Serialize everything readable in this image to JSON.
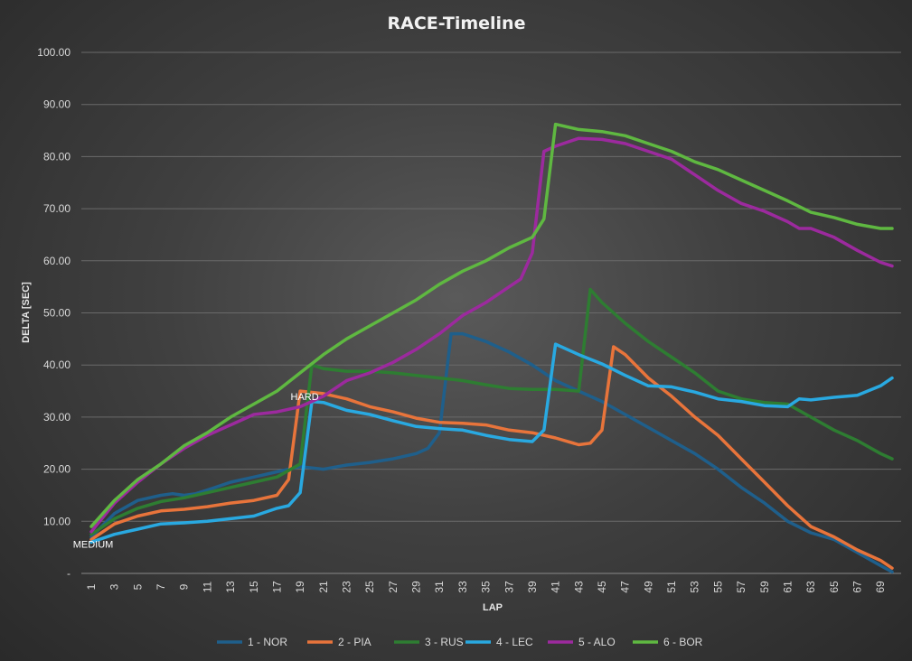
{
  "chart_data": {
    "type": "line",
    "title": "RACE-Timeline",
    "xlabel": "LAP",
    "ylabel": "DELTA [SEC]",
    "xlim": [
      1,
      70
    ],
    "ylim": [
      0,
      100
    ],
    "y_ticks": [
      "-",
      "10.00",
      "20.00",
      "30.00",
      "40.00",
      "50.00",
      "60.00",
      "70.00",
      "80.00",
      "90.00",
      "100.00"
    ],
    "x_ticks": [
      1,
      3,
      5,
      7,
      9,
      11,
      13,
      15,
      17,
      19,
      21,
      23,
      25,
      27,
      29,
      31,
      33,
      35,
      37,
      39,
      41,
      43,
      45,
      47,
      49,
      51,
      53,
      55,
      57,
      59,
      61,
      63,
      65,
      67,
      69
    ],
    "grid": "horizontal",
    "legend_position": "bottom",
    "annotations": [
      {
        "text": "MEDIUM",
        "x": 1,
        "y": 6
      },
      {
        "text": "HARD",
        "x": 19,
        "y": 34
      }
    ],
    "series": [
      {
        "name": "1 - NOR",
        "color": "#1f5f8b",
        "points": [
          [
            1,
            7
          ],
          [
            3,
            11.5
          ],
          [
            5,
            14
          ],
          [
            7,
            15
          ],
          [
            8,
            15.3
          ],
          [
            9,
            15
          ],
          [
            10,
            15.3
          ],
          [
            11,
            16
          ],
          [
            13,
            17.5
          ],
          [
            15,
            18.5
          ],
          [
            17,
            19.5
          ],
          [
            19,
            20.5
          ],
          [
            21,
            20
          ],
          [
            23,
            20.8
          ],
          [
            25,
            21.3
          ],
          [
            27,
            22
          ],
          [
            29,
            23
          ],
          [
            30,
            24
          ],
          [
            31,
            27
          ],
          [
            32,
            46
          ],
          [
            33,
            46
          ],
          [
            35,
            44.5
          ],
          [
            37,
            42.5
          ],
          [
            39,
            40
          ],
          [
            41,
            37
          ],
          [
            43,
            35
          ],
          [
            45,
            33
          ],
          [
            47,
            30.5
          ],
          [
            49,
            28
          ],
          [
            51,
            25.5
          ],
          [
            53,
            23
          ],
          [
            55,
            20
          ],
          [
            57,
            16.5
          ],
          [
            59,
            13.5
          ],
          [
            61,
            10
          ],
          [
            63,
            7.8
          ],
          [
            65,
            6.5
          ],
          [
            67,
            4
          ],
          [
            69,
            1.5
          ],
          [
            70,
            0.3
          ]
        ]
      },
      {
        "name": "2 - PIA",
        "color": "#e8743b",
        "points": [
          [
            1,
            6.5
          ],
          [
            3,
            9.5
          ],
          [
            5,
            11
          ],
          [
            7,
            12
          ],
          [
            9,
            12.3
          ],
          [
            11,
            12.8
          ],
          [
            13,
            13.5
          ],
          [
            15,
            14
          ],
          [
            17,
            15
          ],
          [
            18,
            18
          ],
          [
            19,
            35
          ],
          [
            21,
            34.5
          ],
          [
            23,
            33.5
          ],
          [
            25,
            32
          ],
          [
            27,
            31
          ],
          [
            29,
            29.8
          ],
          [
            31,
            29
          ],
          [
            33,
            28.8
          ],
          [
            35,
            28.5
          ],
          [
            37,
            27.5
          ],
          [
            39,
            27
          ],
          [
            41,
            26
          ],
          [
            43,
            24.7
          ],
          [
            44,
            25
          ],
          [
            45,
            27.5
          ],
          [
            46,
            43.5
          ],
          [
            47,
            42
          ],
          [
            49,
            37.5
          ],
          [
            51,
            34
          ],
          [
            53,
            30
          ],
          [
            55,
            26.5
          ],
          [
            57,
            22
          ],
          [
            59,
            17.5
          ],
          [
            61,
            13
          ],
          [
            63,
            9
          ],
          [
            65,
            7
          ],
          [
            67,
            4.5
          ],
          [
            69,
            2.5
          ],
          [
            70,
            1
          ]
        ]
      },
      {
        "name": "3 - RUS",
        "color": "#2e7d32",
        "points": [
          [
            1,
            7.5
          ],
          [
            3,
            10.5
          ],
          [
            5,
            12.5
          ],
          [
            7,
            13.8
          ],
          [
            9,
            14.5
          ],
          [
            11,
            15.5
          ],
          [
            13,
            16.5
          ],
          [
            15,
            17.5
          ],
          [
            17,
            18.5
          ],
          [
            19,
            21
          ],
          [
            20,
            40
          ],
          [
            21,
            39.3
          ],
          [
            23,
            38.8
          ],
          [
            25,
            38.8
          ],
          [
            27,
            38.5
          ],
          [
            29,
            38
          ],
          [
            31,
            37.5
          ],
          [
            33,
            37
          ],
          [
            35,
            36.2
          ],
          [
            37,
            35.5
          ],
          [
            39,
            35.3
          ],
          [
            41,
            35.3
          ],
          [
            43,
            35
          ],
          [
            44,
            54.5
          ],
          [
            45,
            52
          ],
          [
            47,
            48
          ],
          [
            49,
            44.5
          ],
          [
            51,
            41.5
          ],
          [
            53,
            38.5
          ],
          [
            55,
            35
          ],
          [
            57,
            33.5
          ],
          [
            59,
            32.8
          ],
          [
            61,
            32.5
          ],
          [
            63,
            30
          ],
          [
            65,
            27.5
          ],
          [
            67,
            25.5
          ],
          [
            69,
            23
          ],
          [
            70,
            22
          ]
        ]
      },
      {
        "name": "4 - LEC",
        "color": "#29a9e1",
        "points": [
          [
            1,
            6
          ],
          [
            3,
            7.5
          ],
          [
            5,
            8.5
          ],
          [
            7,
            9.5
          ],
          [
            9,
            9.7
          ],
          [
            11,
            10
          ],
          [
            13,
            10.5
          ],
          [
            15,
            11
          ],
          [
            17,
            12.5
          ],
          [
            18,
            13
          ],
          [
            19,
            15.5
          ],
          [
            20,
            33
          ],
          [
            21,
            32.8
          ],
          [
            23,
            31.3
          ],
          [
            25,
            30.5
          ],
          [
            27,
            29.3
          ],
          [
            29,
            28.2
          ],
          [
            31,
            27.8
          ],
          [
            33,
            27.5
          ],
          [
            35,
            26.5
          ],
          [
            37,
            25.7
          ],
          [
            39,
            25.3
          ],
          [
            40,
            27.5
          ],
          [
            41,
            44
          ],
          [
            43,
            42
          ],
          [
            45,
            40.2
          ],
          [
            47,
            38
          ],
          [
            49,
            36
          ],
          [
            51,
            35.8
          ],
          [
            53,
            34.8
          ],
          [
            55,
            33.5
          ],
          [
            57,
            33
          ],
          [
            59,
            32.2
          ],
          [
            61,
            32
          ],
          [
            62,
            33.5
          ],
          [
            63,
            33.3
          ],
          [
            65,
            33.8
          ],
          [
            67,
            34.2
          ],
          [
            69,
            36
          ],
          [
            70,
            37.5
          ]
        ]
      },
      {
        "name": "5 - ALO",
        "color": "#9c2a9e",
        "points": [
          [
            1,
            8
          ],
          [
            3,
            13.5
          ],
          [
            5,
            17.5
          ],
          [
            7,
            21
          ],
          [
            9,
            24
          ],
          [
            11,
            26.5
          ],
          [
            13,
            28.5
          ],
          [
            15,
            30.5
          ],
          [
            17,
            31
          ],
          [
            19,
            32
          ],
          [
            21,
            34
          ],
          [
            23,
            37
          ],
          [
            25,
            38.5
          ],
          [
            27,
            40.5
          ],
          [
            29,
            43
          ],
          [
            31,
            46
          ],
          [
            33,
            49.5
          ],
          [
            35,
            52
          ],
          [
            37,
            55
          ],
          [
            38,
            56.5
          ],
          [
            39,
            61.5
          ],
          [
            40,
            81
          ],
          [
            41,
            82
          ],
          [
            43,
            83.5
          ],
          [
            45,
            83.3
          ],
          [
            47,
            82.5
          ],
          [
            49,
            81
          ],
          [
            51,
            79.5
          ],
          [
            53,
            76.5
          ],
          [
            55,
            73.5
          ],
          [
            57,
            71
          ],
          [
            59,
            69.5
          ],
          [
            61,
            67.5
          ],
          [
            62,
            66.2
          ],
          [
            63,
            66.2
          ],
          [
            65,
            64.5
          ],
          [
            67,
            62
          ],
          [
            69,
            59.7
          ],
          [
            70,
            59
          ]
        ]
      },
      {
        "name": "6 - BOR",
        "color": "#5fb841",
        "points": [
          [
            1,
            9
          ],
          [
            3,
            14
          ],
          [
            5,
            18
          ],
          [
            7,
            21
          ],
          [
            9,
            24.5
          ],
          [
            11,
            27
          ],
          [
            13,
            30
          ],
          [
            15,
            32.5
          ],
          [
            17,
            35
          ],
          [
            19,
            38.5
          ],
          [
            21,
            42
          ],
          [
            23,
            45
          ],
          [
            25,
            47.5
          ],
          [
            27,
            50
          ],
          [
            29,
            52.5
          ],
          [
            31,
            55.5
          ],
          [
            33,
            58
          ],
          [
            35,
            60
          ],
          [
            37,
            62.5
          ],
          [
            39,
            64.5
          ],
          [
            40,
            68
          ],
          [
            41,
            86.2
          ],
          [
            43,
            85.2
          ],
          [
            45,
            84.8
          ],
          [
            47,
            84
          ],
          [
            49,
            82.5
          ],
          [
            51,
            81
          ],
          [
            53,
            79
          ],
          [
            55,
            77.5
          ],
          [
            57,
            75.5
          ],
          [
            59,
            73.5
          ],
          [
            61,
            71.5
          ],
          [
            63,
            69.3
          ],
          [
            65,
            68.3
          ],
          [
            67,
            67
          ],
          [
            69,
            66.2
          ],
          [
            70,
            66.2
          ]
        ]
      }
    ]
  }
}
